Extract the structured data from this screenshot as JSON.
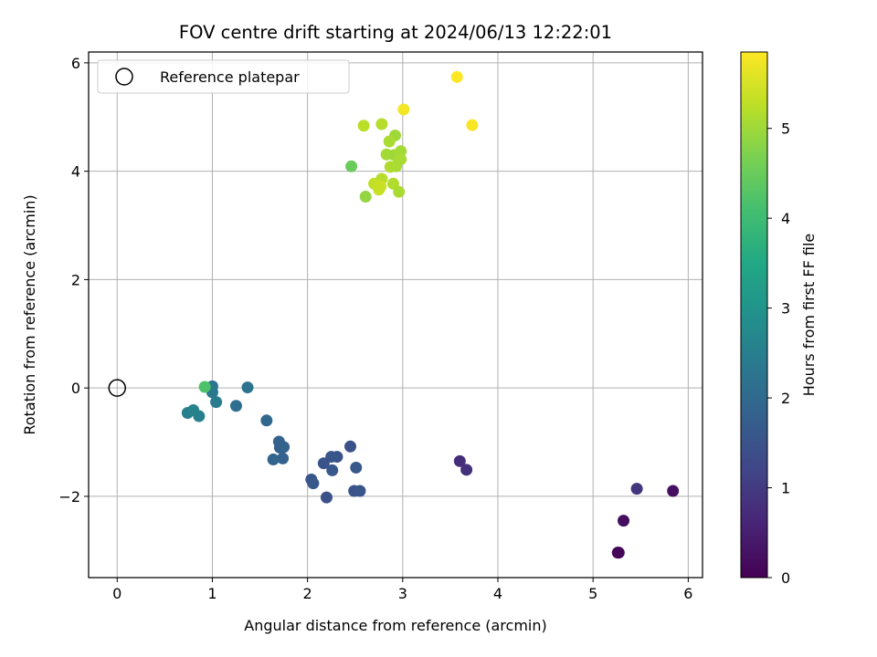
{
  "chart_data": {
    "type": "scatter",
    "title": "FOV centre drift starting at 2024/06/13 12:22:01",
    "xlabel": "Angular distance from reference (arcmin)",
    "ylabel": "Rotation from reference (arcmin)",
    "xlim": [
      -0.3,
      6.15
    ],
    "ylim": [
      -3.5,
      6.2
    ],
    "xticks": [
      0,
      1,
      2,
      3,
      4,
      5,
      6
    ],
    "yticks": [
      -2,
      0,
      2,
      4,
      6
    ],
    "grid": true,
    "legend": {
      "location": "upper-left",
      "entries": [
        "Reference platepar"
      ]
    },
    "reference_point": {
      "x": 0,
      "y": 0,
      "label": "Reference platepar"
    },
    "colorbar": {
      "label": "Hours from first FF file",
      "colormap": "viridis",
      "range": [
        0,
        5.85
      ],
      "ticks": [
        0,
        1,
        2,
        3,
        4,
        5
      ]
    },
    "points": [
      {
        "x": 5.26,
        "y": -3.04,
        "c": 0.0
      },
      {
        "x": 5.27,
        "y": -3.04,
        "c": 0.05
      },
      {
        "x": 5.32,
        "y": -2.45,
        "c": 0.2
      },
      {
        "x": 5.84,
        "y": -1.9,
        "c": 0.25
      },
      {
        "x": 5.46,
        "y": -1.86,
        "c": 0.9
      },
      {
        "x": 3.6,
        "y": -1.35,
        "c": 0.75
      },
      {
        "x": 3.67,
        "y": -1.51,
        "c": 0.8
      },
      {
        "x": 2.45,
        "y": -1.08,
        "c": 1.45
      },
      {
        "x": 2.31,
        "y": -1.27,
        "c": 1.5
      },
      {
        "x": 2.25,
        "y": -1.27,
        "c": 1.55
      },
      {
        "x": 2.17,
        "y": -1.39,
        "c": 1.5
      },
      {
        "x": 2.26,
        "y": -1.52,
        "c": 1.6
      },
      {
        "x": 2.51,
        "y": -1.47,
        "c": 1.6
      },
      {
        "x": 2.04,
        "y": -1.69,
        "c": 1.55
      },
      {
        "x": 2.06,
        "y": -1.76,
        "c": 1.6
      },
      {
        "x": 2.2,
        "y": -2.02,
        "c": 1.45
      },
      {
        "x": 2.49,
        "y": -1.9,
        "c": 1.5
      },
      {
        "x": 2.55,
        "y": -1.9,
        "c": 1.55
      },
      {
        "x": 1.7,
        "y": -0.99,
        "c": 1.85
      },
      {
        "x": 1.71,
        "y": -1.1,
        "c": 1.8
      },
      {
        "x": 1.75,
        "y": -1.09,
        "c": 1.85
      },
      {
        "x": 1.74,
        "y": -1.3,
        "c": 1.8
      },
      {
        "x": 1.64,
        "y": -1.32,
        "c": 1.9
      },
      {
        "x": 1.57,
        "y": -0.6,
        "c": 2.0
      },
      {
        "x": 1.25,
        "y": -0.33,
        "c": 2.1
      },
      {
        "x": 1.37,
        "y": 0.01,
        "c": 2.2
      },
      {
        "x": 1.0,
        "y": 0.03,
        "c": 2.3
      },
      {
        "x": 1.0,
        "y": -0.08,
        "c": 2.35
      },
      {
        "x": 1.04,
        "y": -0.26,
        "c": 2.4
      },
      {
        "x": 0.74,
        "y": -0.46,
        "c": 2.5
      },
      {
        "x": 0.8,
        "y": -0.41,
        "c": 2.6
      },
      {
        "x": 0.86,
        "y": -0.52,
        "c": 2.55
      },
      {
        "x": 0.92,
        "y": 0.02,
        "c": 4.2
      },
      {
        "x": 2.46,
        "y": 4.09,
        "c": 4.5
      },
      {
        "x": 2.61,
        "y": 3.53,
        "c": 4.9
      },
      {
        "x": 2.59,
        "y": 4.84,
        "c": 5.25
      },
      {
        "x": 2.78,
        "y": 4.87,
        "c": 5.2
      },
      {
        "x": 2.92,
        "y": 4.66,
        "c": 5.0
      },
      {
        "x": 2.86,
        "y": 4.55,
        "c": 5.1
      },
      {
        "x": 2.83,
        "y": 4.31,
        "c": 5.05
      },
      {
        "x": 2.91,
        "y": 4.3,
        "c": 5.0
      },
      {
        "x": 2.98,
        "y": 4.37,
        "c": 5.05
      },
      {
        "x": 2.98,
        "y": 4.22,
        "c": 5.1
      },
      {
        "x": 2.87,
        "y": 4.08,
        "c": 5.15
      },
      {
        "x": 2.93,
        "y": 4.09,
        "c": 5.1
      },
      {
        "x": 2.78,
        "y": 3.86,
        "c": 5.2
      },
      {
        "x": 2.7,
        "y": 3.77,
        "c": 5.3
      },
      {
        "x": 2.77,
        "y": 3.72,
        "c": 5.4
      },
      {
        "x": 2.75,
        "y": 3.66,
        "c": 5.35
      },
      {
        "x": 2.9,
        "y": 3.77,
        "c": 5.15
      },
      {
        "x": 2.96,
        "y": 3.62,
        "c": 5.1
      },
      {
        "x": 3.01,
        "y": 5.14,
        "c": 5.75
      },
      {
        "x": 3.57,
        "y": 5.74,
        "c": 5.85
      },
      {
        "x": 3.73,
        "y": 4.85,
        "c": 5.8
      }
    ]
  }
}
